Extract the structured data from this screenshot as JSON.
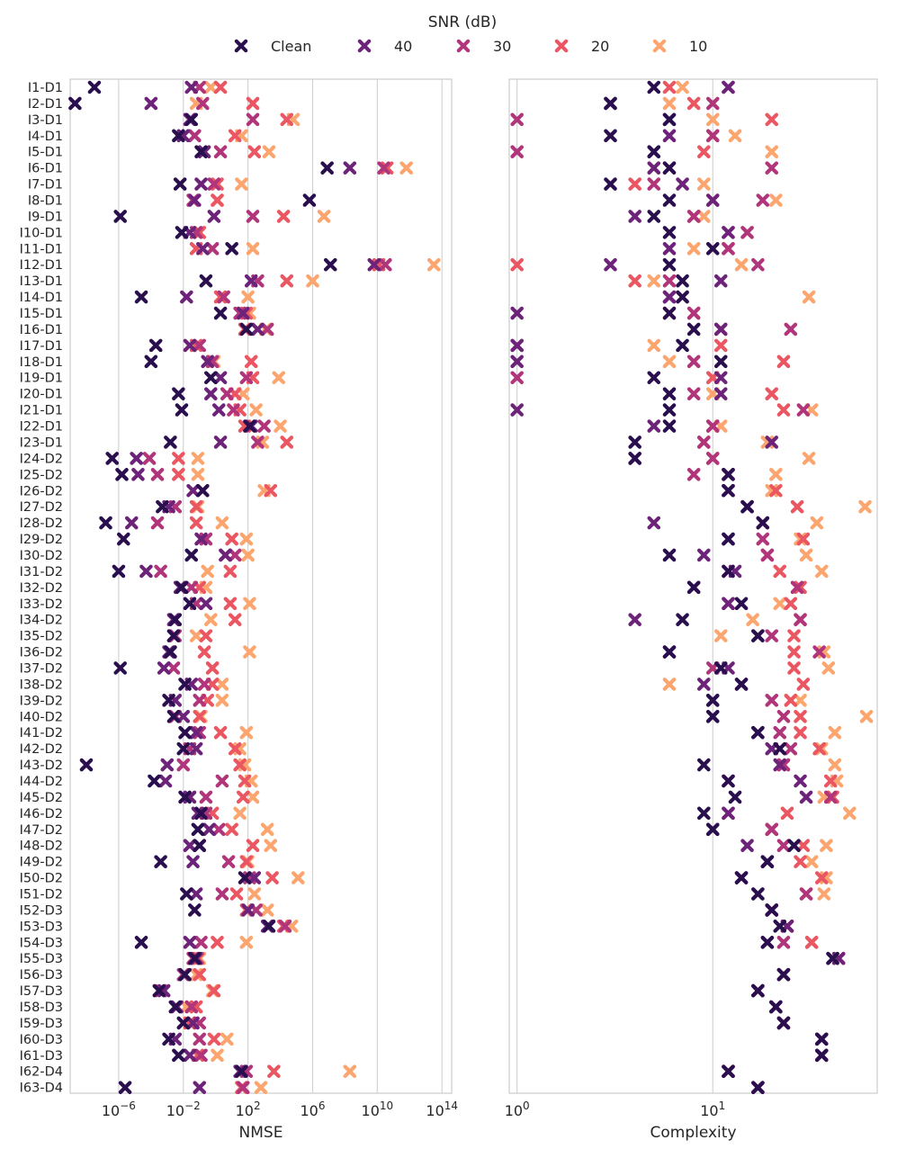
{
  "chart_data": {
    "type": "scatter",
    "legend": {
      "title": "SNR (dB)",
      "placement": "top-center",
      "entries": [
        "Clean",
        "40",
        "30",
        "20",
        "10"
      ]
    },
    "colors": {
      "Clean": "#2a0f4f",
      "40": "#6c2379",
      "30": "#b0357a",
      "20": "#ea5661",
      "10": "#fca56e"
    },
    "marker": "x",
    "categories": [
      "I1-D1",
      "I2-D1",
      "I3-D1",
      "I4-D1",
      "I5-D1",
      "I6-D1",
      "I7-D1",
      "I8-D1",
      "I9-D1",
      "I10-D1",
      "I11-D1",
      "I12-D1",
      "I13-D1",
      "I14-D1",
      "I15-D1",
      "I16-D1",
      "I17-D1",
      "I18-D1",
      "I19-D1",
      "I20-D1",
      "I21-D1",
      "I22-D1",
      "I23-D1",
      "I24-D2",
      "I25-D2",
      "I26-D2",
      "I27-D2",
      "I28-D2",
      "I29-D2",
      "I30-D2",
      "I31-D2",
      "I32-D2",
      "I33-D2",
      "I34-D2",
      "I35-D2",
      "I36-D2",
      "I37-D2",
      "I38-D2",
      "I39-D2",
      "I40-D2",
      "I41-D2",
      "I42-D2",
      "I43-D2",
      "I44-D2",
      "I45-D2",
      "I46-D2",
      "I47-D2",
      "I48-D2",
      "I49-D2",
      "I50-D2",
      "I51-D2",
      "I52-D3",
      "I53-D3",
      "I54-D3",
      "I55-D3",
      "I56-D3",
      "I57-D3",
      "I58-D3",
      "I59-D3",
      "I60-D3",
      "I61-D3",
      "I62-D4",
      "I63-D4"
    ],
    "panels": [
      {
        "xlabel": "NMSE",
        "xscale": "log10",
        "xlim_log10": [
          -9.0,
          14.6
        ],
        "xticks": [
          {
            "value_log10": -6,
            "label": "10−6"
          },
          {
            "value_log10": -2,
            "label": "10−2"
          },
          {
            "value_log10": 2,
            "label": "102"
          },
          {
            "value_log10": 6,
            "label": "106"
          },
          {
            "value_log10": 10,
            "label": "1010"
          },
          {
            "value_log10": 14,
            "label": "1014"
          }
        ],
        "values_log10": [
          [
            -7.5,
            -1.5,
            -1.0,
            0.3,
            -0.3
          ],
          [
            -8.7,
            -4.0,
            -0.8,
            2.3,
            -1.2
          ],
          [
            -1.5,
            -1.6,
            2.3,
            4.4,
            4.8
          ],
          [
            -2.3,
            -2.0,
            -1.3,
            1.2,
            1.6
          ],
          [
            -0.9,
            -0.7,
            0.3,
            2.4,
            3.3
          ],
          [
            6.9,
            8.3,
            10.4,
            10.6,
            11.8
          ],
          [
            -2.2,
            -0.9,
            -0.1,
            0.1,
            1.6
          ],
          [
            5.8,
            -1.3,
            -1.4,
            0.1,
            0.1
          ],
          [
            -5.9,
            -0.1,
            2.3,
            4.2,
            6.7
          ],
          [
            -2.1,
            -1.6,
            -1.2,
            -1.0,
            -1.0
          ],
          [
            1.0,
            -0.8,
            -0.2,
            -1.2,
            2.3
          ],
          [
            7.1,
            9.8,
            10.5,
            10.1,
            13.5
          ],
          [
            -0.6,
            2.2,
            2.6,
            4.4,
            6.0
          ],
          [
            -4.6,
            -1.8,
            0.5,
            0.3,
            2.0
          ],
          [
            0.3,
            1.7,
            1.5,
            1.9,
            2.1
          ],
          [
            1.9,
            2.6,
            3.2,
            1.8,
            3.1
          ],
          [
            -3.7,
            -1.6,
            -1.0,
            -1.2,
            -1.6
          ],
          [
            -4.0,
            -0.5,
            -0.2,
            2.2,
            -0.1
          ],
          [
            -0.3,
            0.3,
            1.9,
            2.3,
            3.9
          ],
          [
            -2.3,
            -0.3,
            0.7,
            1.2,
            1.7
          ],
          [
            -2.1,
            0.2,
            1.1,
            1.5,
            2.5
          ],
          [
            2.1,
            2.2,
            3.0,
            1.8,
            4.0
          ],
          [
            -2.8,
            0.3,
            2.6,
            4.4,
            2.9
          ],
          [
            -6.4,
            -4.9,
            -4.1,
            -2.3,
            -1.1
          ],
          [
            -5.8,
            -4.8,
            -3.6,
            -2.3,
            -1.1
          ],
          [
            -0.8,
            -1.4,
            -0.8,
            3.4,
            3.0
          ],
          [
            -3.3,
            -2.9,
            -2.5,
            -1.2,
            -1.1
          ],
          [
            -6.8,
            -5.2,
            -3.6,
            -1.2,
            0.4
          ],
          [
            -5.7,
            -0.9,
            -0.6,
            1.0,
            1.9
          ],
          [
            -1.5,
            0.6,
            1.2,
            0.6,
            2.0
          ],
          [
            -6.0,
            -4.3,
            -3.4,
            0.9,
            -0.5
          ],
          [
            -2.1,
            -2.2,
            -1.5,
            -1.0,
            -0.6
          ],
          [
            -1.6,
            -0.6,
            -1.2,
            0.9,
            2.1
          ],
          [
            -2.5,
            -2.6,
            -2.6,
            1.2,
            -0.3
          ],
          [
            -2.6,
            -2.6,
            -2.5,
            -0.6,
            -1.2
          ],
          [
            -2.8,
            -2.9,
            -2.8,
            -0.7,
            2.1
          ],
          [
            -5.9,
            -3.2,
            -2.6,
            -0.2,
            -0.2
          ],
          [
            -1.9,
            -1.5,
            -0.7,
            -0.2,
            0.4
          ],
          [
            -2.9,
            -2.5,
            -1.0,
            -0.5,
            0.4
          ],
          [
            -2.6,
            -2.0,
            -2.5,
            -1.0,
            -0.9
          ],
          [
            -1.9,
            -1.2,
            -1.0,
            0.3,
            1.9
          ],
          [
            -2.0,
            -1.2,
            -1.6,
            1.2,
            1.5
          ],
          [
            -8.0,
            -3.0,
            -2.0,
            1.5,
            1.8
          ],
          [
            -3.8,
            -3.1,
            0.4,
            1.8,
            2.2
          ],
          [
            -1.9,
            -1.6,
            -0.6,
            1.7,
            2.3
          ],
          [
            -0.9,
            -1.1,
            -0.6,
            -0.2,
            1.5
          ],
          [
            -1.1,
            -0.4,
            0.2,
            1.0,
            3.2
          ],
          [
            -1.0,
            -1.6,
            -1.0,
            2.3,
            3.4
          ],
          [
            -3.4,
            -1.4,
            0.8,
            1.9,
            2.0
          ],
          [
            1.8,
            2.4,
            2.1,
            3.5,
            5.1
          ],
          [
            -1.8,
            -1.2,
            0.4,
            1.3,
            2.4
          ],
          [
            -1.3,
            2.0,
            2.5,
            1.9,
            3.2
          ],
          [
            3.3,
            3.2,
            4.3,
            4.2,
            4.7
          ],
          [
            -4.6,
            -1.6,
            -0.9,
            0.1,
            1.9
          ],
          [
            -1.3,
            -1.2,
            -1.4,
            -1.1,
            -1.0
          ],
          [
            -1.9,
            -1.9,
            -2.0,
            -1.0,
            -1.2
          ],
          [
            -3.5,
            -3.2,
            -3.4,
            -0.1,
            -0.2
          ],
          [
            -2.5,
            -2.4,
            -1.5,
            -1.2,
            -1.8
          ],
          [
            -2.0,
            -1.4,
            -1.0,
            -1.6,
            -1.4
          ],
          [
            -2.9,
            -2.5,
            -1.0,
            -0.1,
            0.7
          ],
          [
            -2.3,
            -1.6,
            -0.9,
            -1.1,
            0.1
          ],
          [
            1.6,
            1.5,
            1.9,
            3.6,
            8.3
          ],
          [
            -5.6,
            -1.0,
            1.7,
            1.6,
            2.8
          ]
        ]
      },
      {
        "xlabel": "Complexity",
        "xscale": "log10",
        "xlim_log10": [
          -0.04,
          1.84
        ],
        "xticks": [
          {
            "value_log10": 0,
            "label": "100"
          },
          {
            "value_log10": 1,
            "label": "101"
          }
        ],
        "values": [
          [
            5,
            12,
            12,
            6,
            7
          ],
          [
            3,
            3,
            10,
            8,
            6
          ],
          [
            6,
            6,
            1,
            20,
            10
          ],
          [
            3,
            6,
            10,
            10,
            13
          ],
          [
            5,
            5,
            1,
            9,
            20
          ],
          [
            6,
            5,
            20,
            6,
            5
          ],
          [
            3,
            7,
            5,
            4,
            9
          ],
          [
            6,
            10,
            18,
            10,
            21
          ],
          [
            5,
            4,
            8,
            8,
            9
          ],
          [
            6,
            12,
            15,
            12,
            15
          ],
          [
            10,
            6,
            12,
            12,
            8
          ],
          [
            6,
            3,
            17,
            1,
            14
          ],
          [
            7,
            11,
            6,
            4,
            5
          ],
          [
            7,
            6,
            6,
            7,
            31
          ],
          [
            6,
            1,
            8,
            8,
            6
          ],
          [
            8,
            11,
            25,
            11,
            11
          ],
          [
            7,
            1,
            1,
            11,
            5
          ],
          [
            11,
            1,
            8,
            23,
            6
          ],
          [
            5,
            11,
            1,
            10,
            10
          ],
          [
            6,
            11,
            8,
            20,
            10
          ],
          [
            6,
            1,
            29,
            23,
            32
          ],
          [
            6,
            5,
            10,
            10,
            11
          ],
          [
            4,
            20,
            9,
            9,
            19
          ],
          [
            4,
            4,
            10,
            10,
            31
          ],
          [
            12,
            12,
            8,
            12,
            21
          ],
          [
            12,
            12,
            12,
            21,
            20
          ],
          [
            15,
            15,
            15,
            27,
            60
          ],
          [
            18,
            5,
            18,
            18,
            34
          ],
          [
            12,
            12,
            18,
            29,
            28
          ],
          [
            6,
            9,
            19,
            19,
            30
          ],
          [
            12,
            13,
            12,
            22,
            36
          ],
          [
            8,
            8,
            27,
            28,
            27
          ],
          [
            14,
            12,
            12,
            25,
            22
          ],
          [
            7,
            4,
            28,
            28,
            16
          ],
          [
            17,
            17,
            20,
            26,
            11
          ],
          [
            6,
            6,
            35,
            26,
            37
          ],
          [
            11,
            12,
            10,
            26,
            39
          ],
          [
            14,
            9,
            14,
            29,
            6
          ],
          [
            10,
            10,
            20,
            25,
            28
          ],
          [
            10,
            10,
            23,
            28,
            61
          ],
          [
            17,
            17,
            22,
            28,
            42
          ],
          [
            22,
            20,
            25,
            35,
            36
          ],
          [
            9,
            22,
            23,
            23,
            42
          ],
          [
            12,
            28,
            12,
            40,
            43
          ],
          [
            13,
            30,
            40,
            41,
            37
          ],
          [
            9,
            12,
            12,
            24,
            50
          ],
          [
            10,
            10,
            20,
            20,
            20
          ],
          [
            26,
            15,
            23,
            29,
            38
          ],
          [
            19,
            19,
            19,
            28,
            32
          ],
          [
            14,
            14,
            14,
            36,
            38
          ],
          [
            17,
            17,
            30,
            30,
            37
          ],
          [
            20,
            20,
            20,
            20,
            20
          ],
          [
            22,
            24,
            24,
            24,
            24
          ],
          [
            19,
            19,
            23,
            32,
            32
          ],
          [
            41,
            44,
            41,
            44,
            44
          ],
          [
            23,
            23,
            23,
            23,
            23
          ],
          [
            17,
            17,
            17,
            17,
            17
          ],
          [
            21,
            21,
            21,
            21,
            21
          ],
          [
            23,
            23,
            23,
            23,
            23
          ],
          [
            36,
            36,
            36,
            36,
            36
          ],
          [
            36,
            36,
            36,
            36,
            36
          ],
          [
            12,
            12,
            12,
            12,
            12
          ],
          [
            17,
            17,
            17,
            17,
            17
          ]
        ]
      }
    ]
  }
}
